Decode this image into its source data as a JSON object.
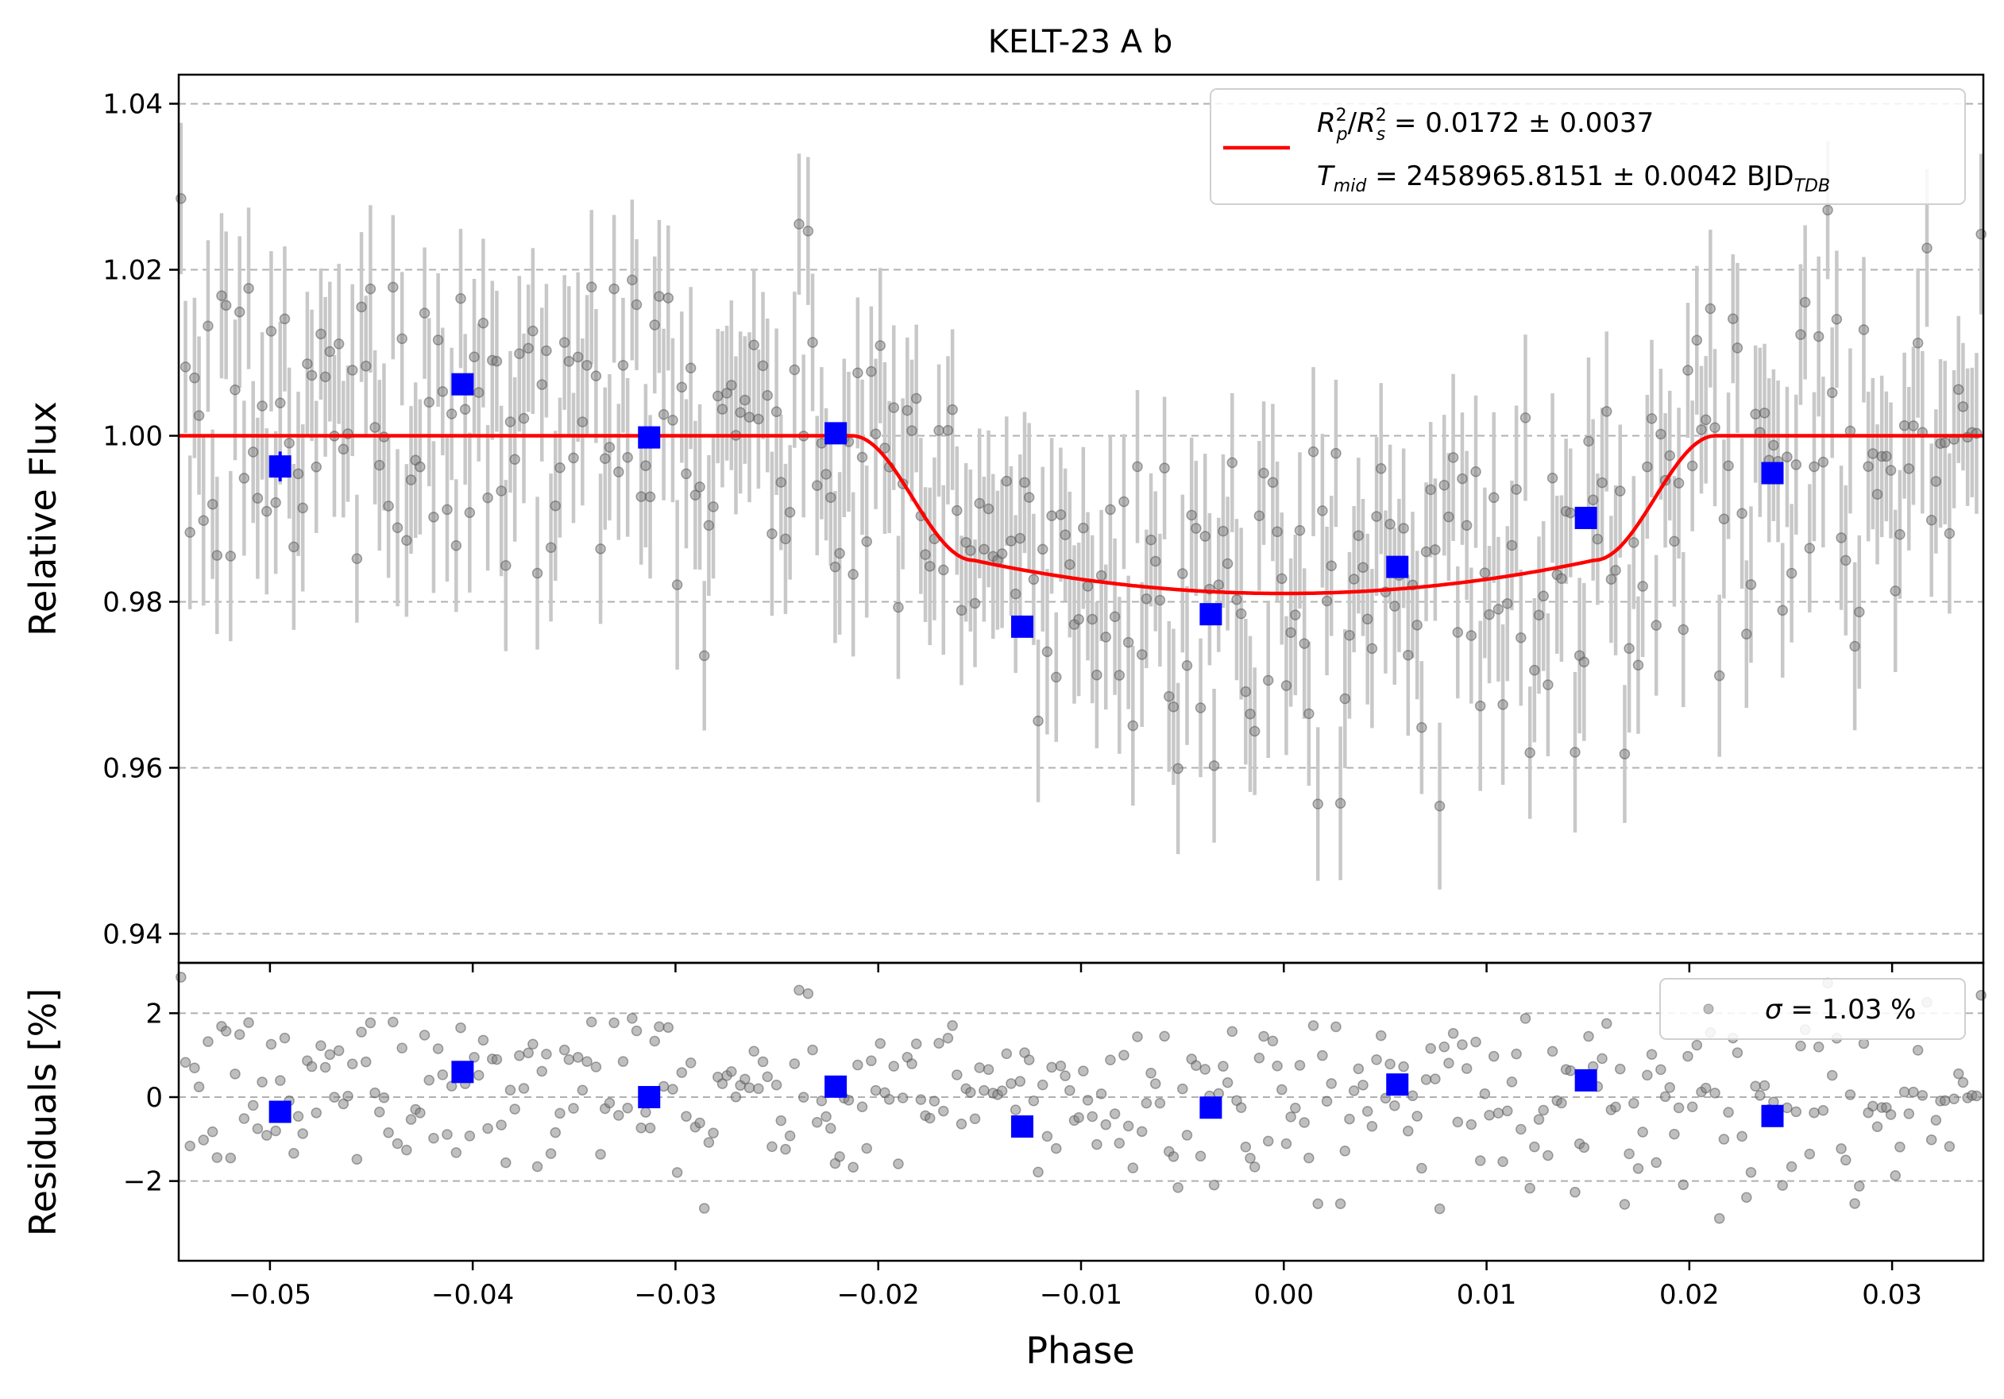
{
  "chart_data": [
    {
      "type": "scatter",
      "panel": "flux",
      "title": "KELT-23 A b",
      "xlabel": "",
      "ylabel": "Relative Flux",
      "xlim": [
        -0.0545,
        0.0345
      ],
      "ylim": [
        0.9365,
        1.0435
      ],
      "xticks": [
        -0.05,
        -0.04,
        -0.03,
        -0.02,
        -0.01,
        0.0,
        0.01,
        0.02,
        0.03
      ],
      "xtick_labels": [
        "−0.05",
        "−0.04",
        "−0.03",
        "−0.02",
        "−0.01",
        "0.00",
        "0.01",
        "0.02",
        "0.03"
      ],
      "yticks": [
        0.94,
        0.96,
        0.98,
        1.0,
        1.02,
        1.04
      ],
      "ytick_labels": [
        "0.94",
        "0.96",
        "0.98",
        "1.00",
        "1.02",
        "1.04"
      ],
      "grid": "horizontal-dashed",
      "legend": {
        "placement": "top-right",
        "line1_math": "R_p^2/R_s^2",
        "line1_rest": " = 0.0172 ± 0.0037",
        "line2_math": "T_mid",
        "line2_rest": " = 2458965.8151 ± 0.0042 BJD",
        "line2_sub": "TDB"
      },
      "model": {
        "color": "#ff0000",
        "depth": 0.0172,
        "t1": -0.0213,
        "t2": -0.0153,
        "t3": 0.0153,
        "t4": 0.0213,
        "bottom": 0.981
      },
      "binned": {
        "color": "#0000ff",
        "x": [
          -0.0495,
          -0.0405,
          -0.0313,
          -0.0221,
          -0.0129,
          -0.0036,
          0.0056,
          0.0149,
          0.0241
        ],
        "y": [
          0.9963,
          1.0062,
          0.9998,
          1.0003,
          0.977,
          0.9785,
          0.9842,
          0.9901,
          0.9955
        ],
        "err": [
          0.0018,
          0.0013,
          0.0013,
          0.0013,
          0.0013,
          0.0013,
          0.0013,
          0.0013,
          0.0013
        ]
      },
      "raw_points": {
        "color": "#808080",
        "errorbar_color": "#c8c8c8",
        "count": 400,
        "scatter_percent": 1.03,
        "typical_err": 0.009
      }
    },
    {
      "type": "scatter",
      "panel": "residuals",
      "xlabel": "Phase",
      "ylabel": "Residuals [%]",
      "xlim": [
        -0.0545,
        0.0345
      ],
      "ylim": [
        -3.9,
        3.2
      ],
      "yticks": [
        -2,
        0,
        2
      ],
      "ytick_labels": [
        "−2",
        "0",
        "2"
      ],
      "grid": "horizontal-dashed",
      "legend": {
        "placement": "top-right",
        "sigma_symbol": "σ",
        "sigma_text": " = 1.03 %"
      },
      "binned": {
        "color": "#0000ff",
        "x": [
          -0.0495,
          -0.0405,
          -0.0313,
          -0.0221,
          -0.0129,
          -0.0036,
          0.0056,
          0.0149,
          0.0241
        ],
        "y": [
          -0.35,
          0.6,
          0.0,
          0.25,
          -0.7,
          -0.25,
          0.3,
          0.4,
          -0.45
        ]
      }
    }
  ]
}
